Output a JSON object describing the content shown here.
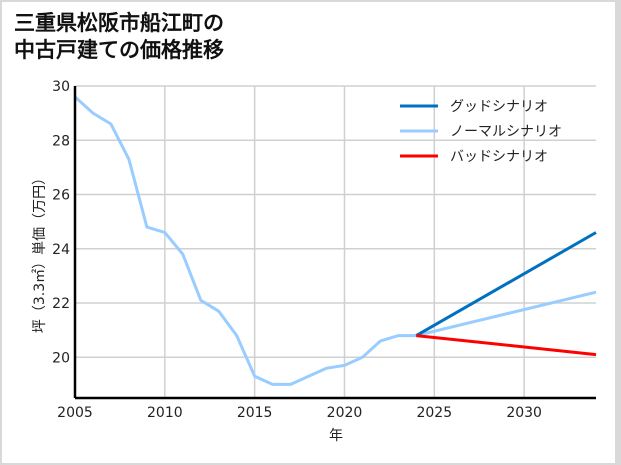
{
  "title_lines": [
    "三重県松阪市船江町の",
    "中古戸建ての価格推移"
  ],
  "chart_data": {
    "type": "line",
    "title": "三重県松阪市船江町の中古戸建ての価格推移",
    "xlabel": "年",
    "ylabel": "坪（3.3㎡）単価（万円）",
    "xlim": [
      2005,
      2034
    ],
    "ylim": [
      18.5,
      30
    ],
    "xticks": [
      2005,
      2010,
      2015,
      2020,
      2025,
      2030
    ],
    "yticks": [
      20,
      22,
      24,
      26,
      28,
      30
    ],
    "grid": true,
    "legend_position": "upper right",
    "series": [
      {
        "name": "グッドシナリオ",
        "color": "#0070c0",
        "x": [
          2024,
          2034
        ],
        "values": [
          20.8,
          24.6
        ]
      },
      {
        "name": "ノーマルシナリオ",
        "color": "#99ccff",
        "x": [
          2005,
          2006,
          2007,
          2008,
          2009,
          2010,
          2011,
          2012,
          2013,
          2014,
          2015,
          2016,
          2017,
          2018,
          2019,
          2020,
          2021,
          2022,
          2023,
          2024,
          2034
        ],
        "values": [
          29.6,
          29.0,
          28.6,
          27.3,
          24.8,
          24.6,
          23.8,
          22.1,
          21.7,
          20.8,
          19.3,
          19.0,
          19.0,
          19.3,
          19.6,
          19.7,
          20.0,
          20.6,
          20.8,
          20.8,
          22.4
        ]
      },
      {
        "name": "バッドシナリオ",
        "color": "#ff0000",
        "x": [
          2024,
          2034
        ],
        "values": [
          20.8,
          20.1
        ]
      }
    ]
  }
}
